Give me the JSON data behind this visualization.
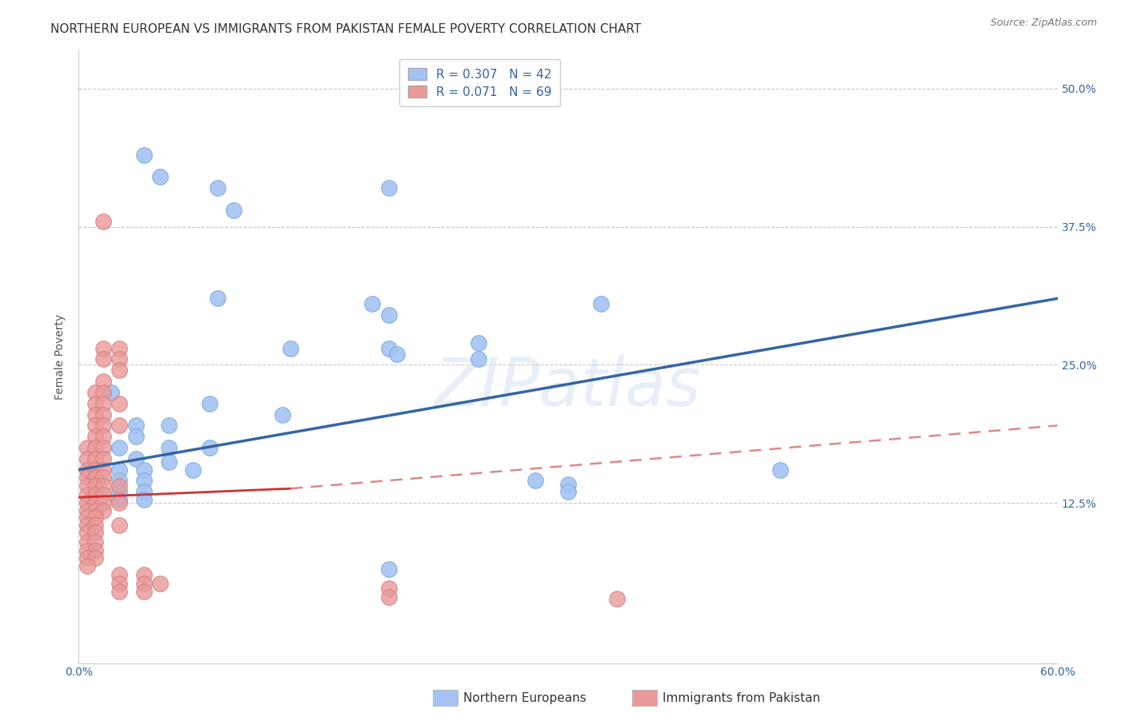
{
  "title": "NORTHERN EUROPEAN VS IMMIGRANTS FROM PAKISTAN FEMALE POVERTY CORRELATION CHART",
  "source": "Source: ZipAtlas.com",
  "ylabel": "Female Poverty",
  "ytick_labels": [
    "12.5%",
    "25.0%",
    "37.5%",
    "50.0%"
  ],
  "ytick_values": [
    0.125,
    0.25,
    0.375,
    0.5
  ],
  "xlim": [
    0.0,
    0.6
  ],
  "ylim": [
    -0.02,
    0.535
  ],
  "blue_R": 0.307,
  "blue_N": 42,
  "pink_R": 0.071,
  "pink_N": 69,
  "legend_label_blue": "Northern Europeans",
  "legend_label_pink": "Immigrants from Pakistan",
  "blue_color": "#a4c2f4",
  "pink_color": "#ea9999",
  "blue_line_color": "#3465a4",
  "pink_solid_color": "#cc3333",
  "pink_dash_color": "#dd8888",
  "blue_scatter": [
    [
      0.04,
      0.44
    ],
    [
      0.05,
      0.42
    ],
    [
      0.085,
      0.41
    ],
    [
      0.095,
      0.39
    ],
    [
      0.19,
      0.41
    ],
    [
      0.085,
      0.31
    ],
    [
      0.18,
      0.305
    ],
    [
      0.19,
      0.295
    ],
    [
      0.32,
      0.305
    ],
    [
      0.19,
      0.265
    ],
    [
      0.245,
      0.27
    ],
    [
      0.13,
      0.265
    ],
    [
      0.195,
      0.26
    ],
    [
      0.245,
      0.255
    ],
    [
      0.02,
      0.225
    ],
    [
      0.08,
      0.215
    ],
    [
      0.125,
      0.205
    ],
    [
      0.035,
      0.195
    ],
    [
      0.055,
      0.195
    ],
    [
      0.035,
      0.185
    ],
    [
      0.025,
      0.175
    ],
    [
      0.055,
      0.175
    ],
    [
      0.08,
      0.175
    ],
    [
      0.035,
      0.165
    ],
    [
      0.055,
      0.162
    ],
    [
      0.025,
      0.155
    ],
    [
      0.04,
      0.155
    ],
    [
      0.07,
      0.155
    ],
    [
      0.01,
      0.148
    ],
    [
      0.025,
      0.145
    ],
    [
      0.04,
      0.145
    ],
    [
      0.01,
      0.138
    ],
    [
      0.025,
      0.135
    ],
    [
      0.04,
      0.135
    ],
    [
      0.01,
      0.128
    ],
    [
      0.025,
      0.128
    ],
    [
      0.04,
      0.128
    ],
    [
      0.28,
      0.145
    ],
    [
      0.3,
      0.142
    ],
    [
      0.3,
      0.135
    ],
    [
      0.43,
      0.155
    ],
    [
      0.19,
      0.065
    ]
  ],
  "pink_scatter": [
    [
      0.015,
      0.38
    ],
    [
      0.015,
      0.265
    ],
    [
      0.025,
      0.265
    ],
    [
      0.015,
      0.255
    ],
    [
      0.025,
      0.255
    ],
    [
      0.025,
      0.245
    ],
    [
      0.015,
      0.235
    ],
    [
      0.01,
      0.225
    ],
    [
      0.015,
      0.225
    ],
    [
      0.01,
      0.215
    ],
    [
      0.015,
      0.215
    ],
    [
      0.025,
      0.215
    ],
    [
      0.01,
      0.205
    ],
    [
      0.015,
      0.205
    ],
    [
      0.01,
      0.195
    ],
    [
      0.015,
      0.195
    ],
    [
      0.025,
      0.195
    ],
    [
      0.01,
      0.185
    ],
    [
      0.015,
      0.185
    ],
    [
      0.005,
      0.175
    ],
    [
      0.01,
      0.175
    ],
    [
      0.015,
      0.175
    ],
    [
      0.005,
      0.165
    ],
    [
      0.01,
      0.165
    ],
    [
      0.015,
      0.165
    ],
    [
      0.005,
      0.155
    ],
    [
      0.01,
      0.155
    ],
    [
      0.015,
      0.155
    ],
    [
      0.005,
      0.148
    ],
    [
      0.01,
      0.148
    ],
    [
      0.015,
      0.148
    ],
    [
      0.005,
      0.14
    ],
    [
      0.01,
      0.14
    ],
    [
      0.015,
      0.14
    ],
    [
      0.025,
      0.14
    ],
    [
      0.005,
      0.132
    ],
    [
      0.01,
      0.132
    ],
    [
      0.015,
      0.132
    ],
    [
      0.005,
      0.125
    ],
    [
      0.01,
      0.125
    ],
    [
      0.015,
      0.125
    ],
    [
      0.025,
      0.125
    ],
    [
      0.005,
      0.118
    ],
    [
      0.01,
      0.118
    ],
    [
      0.015,
      0.118
    ],
    [
      0.005,
      0.112
    ],
    [
      0.01,
      0.112
    ],
    [
      0.005,
      0.105
    ],
    [
      0.01,
      0.105
    ],
    [
      0.025,
      0.105
    ],
    [
      0.005,
      0.098
    ],
    [
      0.01,
      0.098
    ],
    [
      0.005,
      0.09
    ],
    [
      0.01,
      0.09
    ],
    [
      0.005,
      0.082
    ],
    [
      0.01,
      0.082
    ],
    [
      0.005,
      0.075
    ],
    [
      0.01,
      0.075
    ],
    [
      0.005,
      0.068
    ],
    [
      0.025,
      0.06
    ],
    [
      0.04,
      0.06
    ],
    [
      0.025,
      0.052
    ],
    [
      0.04,
      0.052
    ],
    [
      0.05,
      0.052
    ],
    [
      0.025,
      0.045
    ],
    [
      0.04,
      0.045
    ],
    [
      0.19,
      0.048
    ],
    [
      0.19,
      0.04
    ],
    [
      0.33,
      0.038
    ]
  ],
  "watermark_text": "ZIPatlas",
  "title_fontsize": 11,
  "axis_label_fontsize": 10,
  "tick_fontsize": 10,
  "legend_fontsize": 11
}
